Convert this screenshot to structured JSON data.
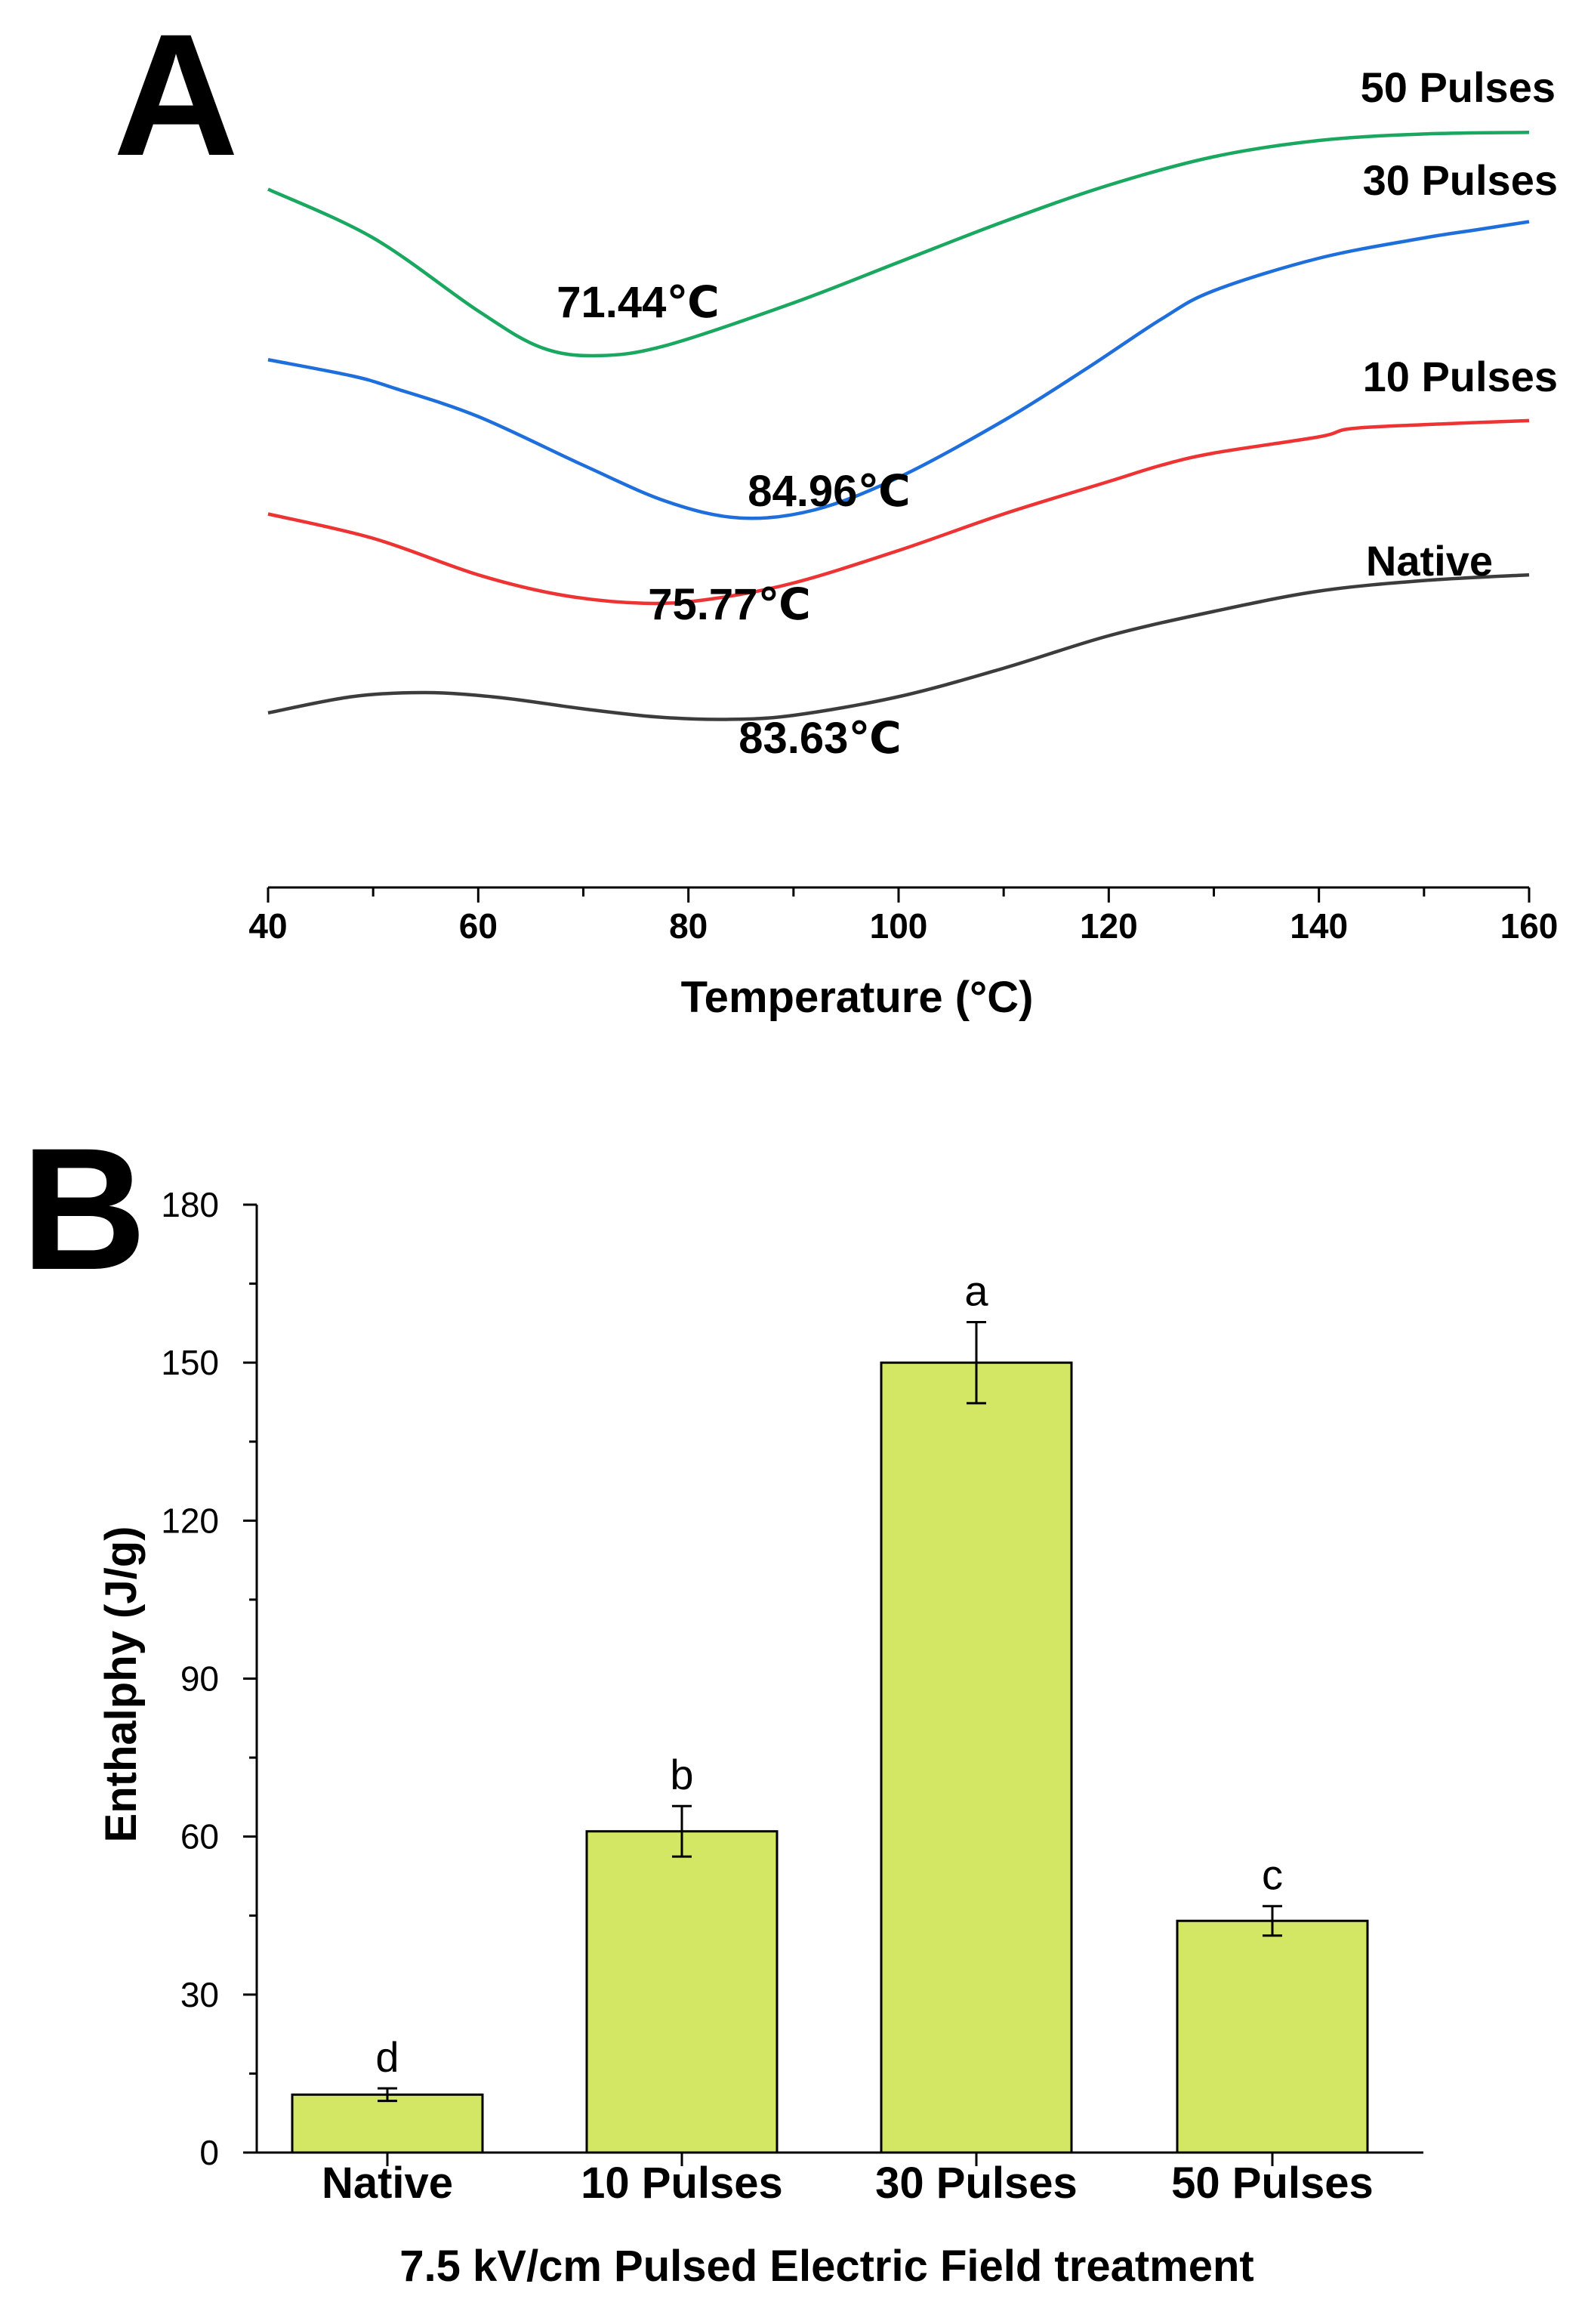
{
  "chart_data": [
    {
      "panel": "A",
      "type": "line",
      "xlabel": "Temperature (°C)",
      "ylabel": "",
      "xlim": [
        40,
        160
      ],
      "x_ticks": [
        40,
        60,
        80,
        100,
        120,
        140,
        160
      ],
      "y_axis_shown": false,
      "series": [
        {
          "name": "50 Pulses",
          "color": "#1aa760",
          "peak_label": "71.44℃",
          "points": [
            [
              40,
              0.86
            ],
            [
              50,
              0.8
            ],
            [
              60,
              0.71
            ],
            [
              66,
              0.665
            ],
            [
              71.44,
              0.655
            ],
            [
              78,
              0.668
            ],
            [
              90,
              0.72
            ],
            [
              100,
              0.77
            ],
            [
              110,
              0.82
            ],
            [
              120,
              0.865
            ],
            [
              130,
              0.9
            ],
            [
              140,
              0.92
            ],
            [
              150,
              0.928
            ],
            [
              160,
              0.93
            ]
          ]
        },
        {
          "name": "30 Pulses",
          "color": "#1e6fdc",
          "peak_label": "84.96℃",
          "points": [
            [
              40,
              0.65
            ],
            [
              48,
              0.63
            ],
            [
              52,
              0.615
            ],
            [
              60,
              0.58
            ],
            [
              70,
              0.52
            ],
            [
              78,
              0.475
            ],
            [
              84.96,
              0.455
            ],
            [
              92,
              0.465
            ],
            [
              100,
              0.505
            ],
            [
              110,
              0.575
            ],
            [
              118,
              0.64
            ],
            [
              125,
              0.7
            ],
            [
              130,
              0.735
            ],
            [
              140,
              0.775
            ],
            [
              150,
              0.8
            ],
            [
              155,
              0.81
            ],
            [
              160,
              0.82
            ]
          ]
        },
        {
          "name": "10 Pulses",
          "color": "#ed3333",
          "peak_label": "75.77℃",
          "points": [
            [
              40,
              0.46
            ],
            [
              50,
              0.43
            ],
            [
              60,
              0.385
            ],
            [
              68,
              0.36
            ],
            [
              75.77,
              0.35
            ],
            [
              82,
              0.355
            ],
            [
              90,
              0.375
            ],
            [
              100,
              0.415
            ],
            [
              110,
              0.46
            ],
            [
              120,
              0.5
            ],
            [
              125,
              0.52
            ],
            [
              130,
              0.535
            ],
            [
              140,
              0.555
            ],
            [
              143,
              0.565
            ],
            [
              150,
              0.57
            ],
            [
              160,
              0.575
            ]
          ]
        },
        {
          "name": "Native",
          "color": "#3c3c3c",
          "peak_label": "83.63℃",
          "points": [
            [
              40,
              0.215
            ],
            [
              48,
              0.235
            ],
            [
              55,
              0.24
            ],
            [
              62,
              0.234
            ],
            [
              70,
              0.22
            ],
            [
              77,
              0.21
            ],
            [
              83.63,
              0.207
            ],
            [
              90,
              0.212
            ],
            [
              100,
              0.235
            ],
            [
              110,
              0.27
            ],
            [
              120,
              0.31
            ],
            [
              130,
              0.34
            ],
            [
              140,
              0.365
            ],
            [
              150,
              0.378
            ],
            [
              160,
              0.385
            ]
          ]
        }
      ]
    },
    {
      "panel": "B",
      "type": "bar",
      "title": "",
      "xlabel": "7.5 kV/cm  Pulsed Electric Field treatment",
      "ylabel": "Enthalphy (J/g)",
      "ylim": [
        0,
        180
      ],
      "y_ticks": [
        0,
        30,
        60,
        90,
        120,
        150,
        180
      ],
      "categories": [
        "Native",
        "10 Pulses",
        "30 Pulses",
        "50 Pulses"
      ],
      "values": [
        11,
        61,
        150,
        44
      ],
      "errors": [
        1.2,
        4.8,
        7.7,
        2.8
      ],
      "significance": [
        "d",
        "b",
        "a",
        "c"
      ],
      "bar_color": "#d3e764"
    }
  ]
}
